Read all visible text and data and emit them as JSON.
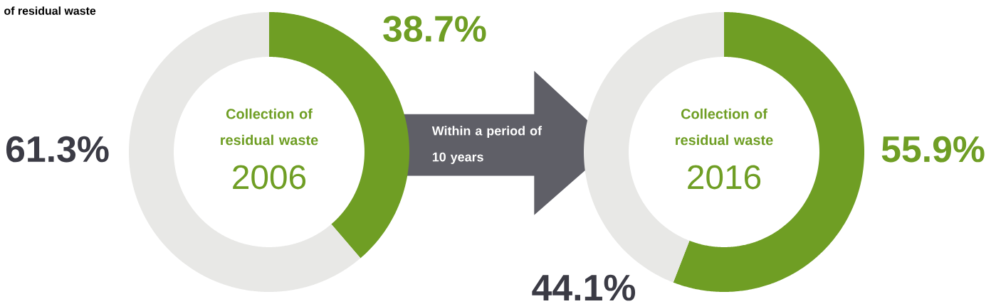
{
  "chart_data": [
    {
      "type": "donut",
      "title": "of residual waste",
      "subtitle": "Collection of residual waste",
      "categories": [
        null,
        null
      ],
      "values": [
        38.7,
        61.3
      ],
      "colors": [
        "#6f9e24",
        "#e8e8e6"
      ],
      "value_labels": [
        "38.7%",
        "61.3%"
      ],
      "annotations": [
        "2006",
        "Within a period of 10 years"
      ]
    },
    {
      "type": "donut",
      "subtitle": "Collection of residual waste",
      "categories": [
        null,
        null
      ],
      "values": [
        55.9,
        44.1
      ],
      "colors": [
        "#6f9e24",
        "#e8e8e6"
      ],
      "value_labels": [
        "55.9%",
        "44.1%"
      ],
      "annotations": [
        "2016"
      ]
    }
  ]
}
